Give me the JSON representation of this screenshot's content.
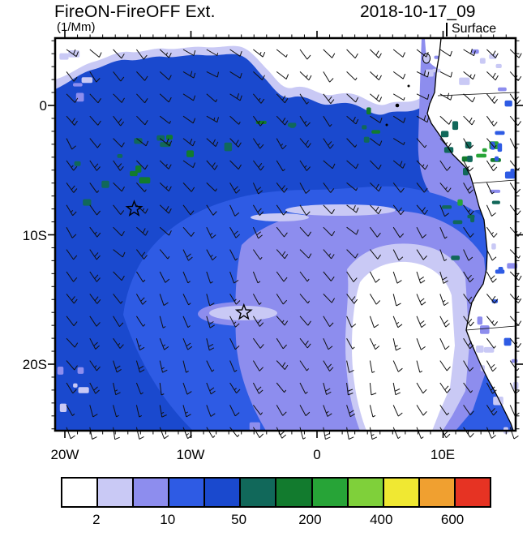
{
  "header": {
    "title": "FireON-FireOFF Ext.",
    "units": "(1/Mm)",
    "datetime": "2018-10-17_09",
    "level_label": "Surface"
  },
  "axes": {
    "y_ticks": [
      {
        "label": "0",
        "lat": 0
      },
      {
        "label": "10S",
        "lat": -10
      },
      {
        "label": "20S",
        "lat": -20
      }
    ],
    "x_ticks": [
      {
        "label": "20W",
        "lon": -20
      },
      {
        "label": "10W",
        "lon": -10
      },
      {
        "label": "0",
        "lon": 0
      },
      {
        "label": "10E",
        "lon": 10
      }
    ]
  },
  "chart_data": {
    "type": "heatmap",
    "title": "FireON-FireOFF Ext.",
    "units": "1/Mm",
    "timestamp": "2018-10-17_09",
    "vertical_level": "Surface",
    "extent": {
      "lon_min": -20.8,
      "lon_max": 15.8,
      "lat_min": -25.2,
      "lat_max": 5.2
    },
    "contour_levels": [
      2,
      5,
      10,
      20,
      50,
      100,
      200,
      300,
      400,
      500,
      600
    ],
    "palette": [
      "#FFFFFF",
      "#C9C9F5",
      "#8D8DEE",
      "#2E5BE4",
      "#1A49CE",
      "#11685A",
      "#127B2E",
      "#27A437",
      "#7FD03A",
      "#F0E832",
      "#F0A030",
      "#E63323"
    ],
    "colorbar_tick_values": [
      2,
      10,
      50,
      200,
      400,
      600
    ],
    "colorbar_tick_level_indices": [
      0,
      2,
      4,
      6,
      8,
      10
    ],
    "overlay": "surface wind barbs, predominantly southeasterly over the South Atlantic",
    "markers": [
      {
        "type": "star",
        "lon": -14.5,
        "lat": -8.0
      },
      {
        "type": "star",
        "lon": -5.8,
        "lat": -16.0
      }
    ],
    "field_summary": [
      {
        "region": "most of the South Atlantic domain",
        "value_range": "20-50 1/Mm"
      },
      {
        "region": "arc of plume edge through central domain toward Angolan coast",
        "value_range": "10-20 1/Mm"
      },
      {
        "region": "large minimum off Namibia near 5E, 13-25S",
        "value_range": "<2-10 1/Mm"
      },
      {
        "region": "northern band along 4-5N and northeast corner",
        "value_range": "<2-10 1/Mm"
      },
      {
        "region": "scattered maxima near equator and along Gabon-Congo-Angola coast",
        "value_range": "50-300 1/Mm"
      }
    ]
  }
}
